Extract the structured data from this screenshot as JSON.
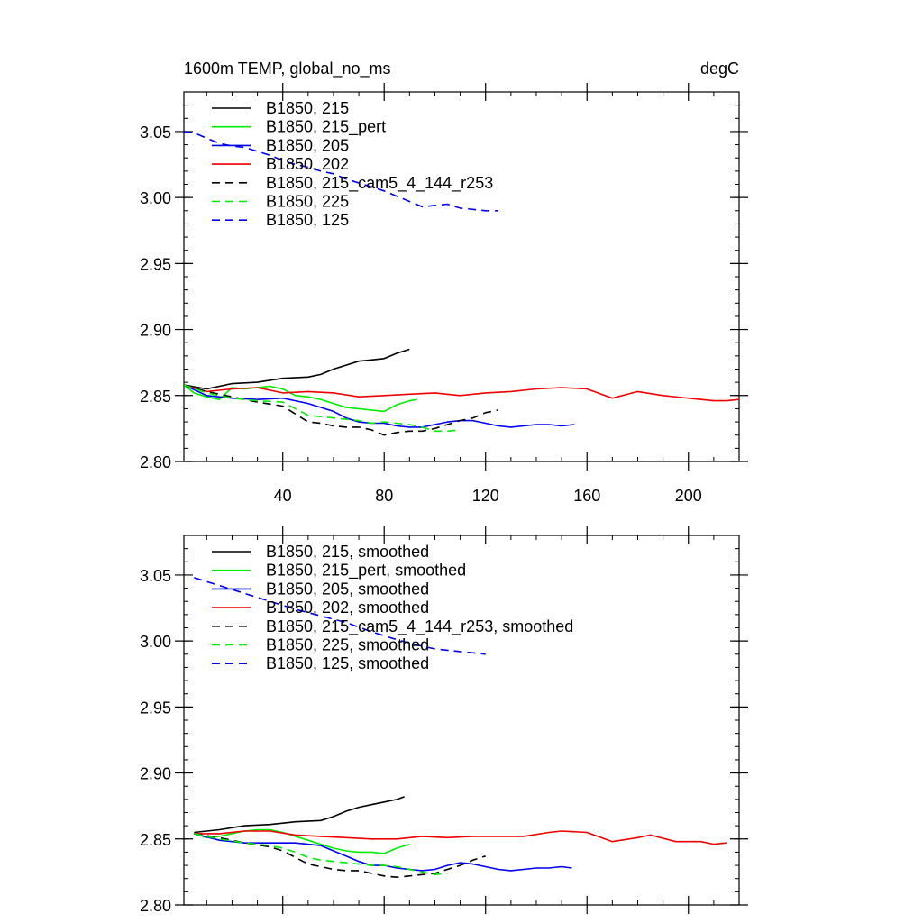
{
  "colors": {
    "black": "#000000",
    "green": "#00ee00",
    "blue": "#0000ee",
    "red": "#ee0000"
  },
  "chart_data": [
    {
      "type": "line",
      "title_left": "1600m TEMP, global_no_ms",
      "title_right": "degC",
      "xlabel": "",
      "ylabel": "",
      "xlim": [
        1,
        220
      ],
      "ylim": [
        2.8,
        3.08
      ],
      "xticks": [
        40,
        80,
        120,
        160,
        200
      ],
      "xtick_labels": [
        "40",
        "80",
        "120",
        "160",
        "200"
      ],
      "yticks": [
        2.8,
        2.85,
        2.9,
        2.95,
        3.0,
        3.05
      ],
      "ytick_labels": [
        "2.80",
        "2.85",
        "2.90",
        "2.95",
        "3.00",
        "3.05"
      ],
      "legend_position": "top-left",
      "series": [
        {
          "name": "B1850, 215",
          "color": "black",
          "dash": "solid",
          "x": [
            1,
            10,
            20,
            30,
            40,
            50,
            55,
            60,
            65,
            70,
            75,
            80,
            85,
            90
          ],
          "y": [
            2.858,
            2.855,
            2.859,
            2.86,
            2.863,
            2.864,
            2.866,
            2.87,
            2.873,
            2.876,
            2.877,
            2.878,
            2.882,
            2.885
          ]
        },
        {
          "name": "B1850, 215_pert",
          "color": "green",
          "dash": "solid",
          "x": [
            1,
            5,
            10,
            15,
            20,
            25,
            30,
            35,
            40,
            45,
            50,
            55,
            60,
            65,
            70,
            75,
            80,
            85,
            90,
            93
          ],
          "y": [
            2.858,
            2.852,
            2.849,
            2.847,
            2.856,
            2.855,
            2.856,
            2.857,
            2.855,
            2.85,
            2.849,
            2.847,
            2.844,
            2.841,
            2.84,
            2.839,
            2.838,
            2.843,
            2.846,
            2.847
          ]
        },
        {
          "name": "B1850, 205",
          "color": "blue",
          "dash": "solid",
          "x": [
            1,
            10,
            20,
            30,
            40,
            50,
            55,
            60,
            65,
            70,
            75,
            80,
            85,
            90,
            95,
            100,
            105,
            110,
            115,
            120,
            125,
            130,
            135,
            140,
            145,
            150,
            155
          ],
          "y": [
            2.858,
            2.85,
            2.848,
            2.847,
            2.848,
            2.844,
            2.841,
            2.838,
            2.833,
            2.83,
            2.829,
            2.829,
            2.827,
            2.826,
            2.826,
            2.828,
            2.83,
            2.831,
            2.831,
            2.829,
            2.827,
            2.826,
            2.827,
            2.828,
            2.828,
            2.827,
            2.828
          ]
        },
        {
          "name": "B1850, 202",
          "color": "red",
          "dash": "solid",
          "x": [
            1,
            10,
            20,
            30,
            40,
            50,
            60,
            70,
            80,
            90,
            100,
            110,
            120,
            130,
            140,
            150,
            160,
            170,
            180,
            190,
            200,
            205,
            210,
            215,
            220
          ],
          "y": [
            2.858,
            2.853,
            2.855,
            2.856,
            2.852,
            2.853,
            2.852,
            2.849,
            2.85,
            2.851,
            2.852,
            2.85,
            2.852,
            2.853,
            2.855,
            2.856,
            2.855,
            2.848,
            2.853,
            2.85,
            2.848,
            2.847,
            2.846,
            2.846,
            2.847
          ]
        },
        {
          "name": "B1850, 215_cam5_4_144_r253",
          "color": "black",
          "dash": "dash",
          "x": [
            1,
            10,
            20,
            30,
            40,
            45,
            50,
            55,
            60,
            65,
            70,
            75,
            80,
            85,
            90,
            95,
            100,
            105,
            110,
            115,
            120,
            125
          ],
          "y": [
            2.858,
            2.853,
            2.849,
            2.845,
            2.842,
            2.836,
            2.83,
            2.829,
            2.827,
            2.826,
            2.826,
            2.824,
            2.82,
            2.822,
            2.823,
            2.823,
            2.825,
            2.828,
            2.831,
            2.833,
            2.837,
            2.839
          ]
        },
        {
          "name": "B1850, 225",
          "color": "green",
          "dash": "dash",
          "x": [
            1,
            10,
            20,
            30,
            40,
            45,
            50,
            55,
            60,
            65,
            70,
            75,
            80,
            85,
            90,
            95,
            100,
            105,
            110
          ],
          "y": [
            2.858,
            2.852,
            2.848,
            2.846,
            2.845,
            2.84,
            2.835,
            2.834,
            2.833,
            2.832,
            2.831,
            2.829,
            2.83,
            2.829,
            2.828,
            2.826,
            2.823,
            2.823,
            2.824
          ]
        },
        {
          "name": "B1850, 125",
          "color": "blue",
          "dash": "dash",
          "x": [
            1,
            5,
            10,
            15,
            20,
            25,
            30,
            35,
            40,
            45,
            50,
            55,
            60,
            65,
            70,
            75,
            80,
            85,
            90,
            95,
            100,
            105,
            110,
            115,
            120,
            125
          ],
          "y": [
            3.05,
            3.049,
            3.045,
            3.041,
            3.039,
            3.038,
            3.035,
            3.032,
            3.028,
            3.025,
            3.023,
            3.02,
            3.018,
            3.014,
            3.011,
            3.008,
            3.005,
            3.001,
            2.997,
            2.993,
            2.994,
            2.995,
            2.992,
            2.991,
            2.99,
            2.99
          ]
        }
      ]
    },
    {
      "type": "line",
      "title_left": "",
      "title_right": "",
      "xlabel": "",
      "ylabel": "",
      "xlim": [
        1,
        220
      ],
      "ylim": [
        2.8,
        3.08
      ],
      "xticks": [
        40,
        80,
        120,
        160,
        200
      ],
      "xtick_labels": [],
      "yticks": [
        2.8,
        2.85,
        2.9,
        2.95,
        3.0,
        3.05
      ],
      "ytick_labels": [
        "2.80",
        "2.85",
        "2.90",
        "2.95",
        "3.00",
        "3.05"
      ],
      "legend_position": "top-left",
      "series": [
        {
          "name": "B1850, 215, smoothed",
          "color": "black",
          "dash": "solid",
          "x": [
            5,
            15,
            25,
            35,
            45,
            55,
            60,
            65,
            70,
            75,
            80,
            85,
            88
          ],
          "y": [
            2.855,
            2.857,
            2.86,
            2.861,
            2.863,
            2.864,
            2.867,
            2.871,
            2.874,
            2.876,
            2.878,
            2.88,
            2.882
          ]
        },
        {
          "name": "B1850, 215_pert, smoothed",
          "color": "green",
          "dash": "solid",
          "x": [
            5,
            10,
            15,
            20,
            25,
            30,
            35,
            40,
            45,
            50,
            55,
            60,
            65,
            70,
            75,
            80,
            85,
            90
          ],
          "y": [
            2.854,
            2.851,
            2.852,
            2.854,
            2.856,
            2.857,
            2.857,
            2.855,
            2.852,
            2.849,
            2.846,
            2.843,
            2.841,
            2.84,
            2.84,
            2.839,
            2.843,
            2.846
          ]
        },
        {
          "name": "B1850, 205, smoothed",
          "color": "blue",
          "dash": "solid",
          "x": [
            5,
            15,
            25,
            35,
            45,
            55,
            60,
            65,
            70,
            75,
            80,
            85,
            90,
            95,
            100,
            105,
            110,
            115,
            120,
            125,
            130,
            135,
            140,
            145,
            150,
            154
          ],
          "y": [
            2.854,
            2.849,
            2.847,
            2.847,
            2.847,
            2.845,
            2.841,
            2.837,
            2.833,
            2.83,
            2.83,
            2.828,
            2.827,
            2.826,
            2.827,
            2.83,
            2.832,
            2.831,
            2.829,
            2.827,
            2.826,
            2.827,
            2.828,
            2.828,
            2.829,
            2.828
          ]
        },
        {
          "name": "B1850, 202, smoothed",
          "color": "red",
          "dash": "solid",
          "x": [
            5,
            15,
            25,
            35,
            45,
            55,
            65,
            75,
            85,
            95,
            105,
            115,
            125,
            135,
            145,
            150,
            160,
            170,
            180,
            185,
            195,
            205,
            210,
            215
          ],
          "y": [
            2.854,
            2.854,
            2.856,
            2.856,
            2.853,
            2.852,
            2.851,
            2.85,
            2.85,
            2.852,
            2.851,
            2.852,
            2.852,
            2.852,
            2.855,
            2.856,
            2.855,
            2.848,
            2.851,
            2.853,
            2.848,
            2.848,
            2.846,
            2.847
          ]
        },
        {
          "name": "B1850, 215_cam5_4_144_r253, smoothed",
          "color": "black",
          "dash": "dash",
          "x": [
            5,
            15,
            25,
            35,
            40,
            45,
            50,
            55,
            60,
            65,
            70,
            75,
            80,
            85,
            90,
            95,
            100,
            105,
            110,
            115,
            120
          ],
          "y": [
            2.854,
            2.851,
            2.847,
            2.844,
            2.841,
            2.836,
            2.831,
            2.829,
            2.827,
            2.826,
            2.826,
            2.824,
            2.822,
            2.821,
            2.822,
            2.823,
            2.824,
            2.827,
            2.83,
            2.834,
            2.837
          ]
        },
        {
          "name": "B1850, 225, smoothed",
          "color": "green",
          "dash": "dash",
          "x": [
            5,
            15,
            25,
            35,
            40,
            45,
            50,
            55,
            60,
            65,
            70,
            75,
            80,
            85,
            90,
            95,
            100,
            105
          ],
          "y": [
            2.854,
            2.85,
            2.847,
            2.845,
            2.843,
            2.84,
            2.836,
            2.834,
            2.833,
            2.832,
            2.831,
            2.83,
            2.83,
            2.829,
            2.827,
            2.825,
            2.823,
            2.824
          ]
        },
        {
          "name": "B1850, 125, smoothed",
          "color": "blue",
          "dash": "dash",
          "x": [
            5,
            15,
            25,
            35,
            45,
            55,
            65,
            75,
            85,
            95,
            100,
            105,
            110,
            115,
            120
          ],
          "y": [
            3.048,
            3.042,
            3.036,
            3.03,
            3.024,
            3.019,
            3.014,
            3.007,
            3.001,
            2.996,
            2.994,
            2.993,
            2.992,
            2.991,
            2.99
          ]
        }
      ]
    }
  ]
}
